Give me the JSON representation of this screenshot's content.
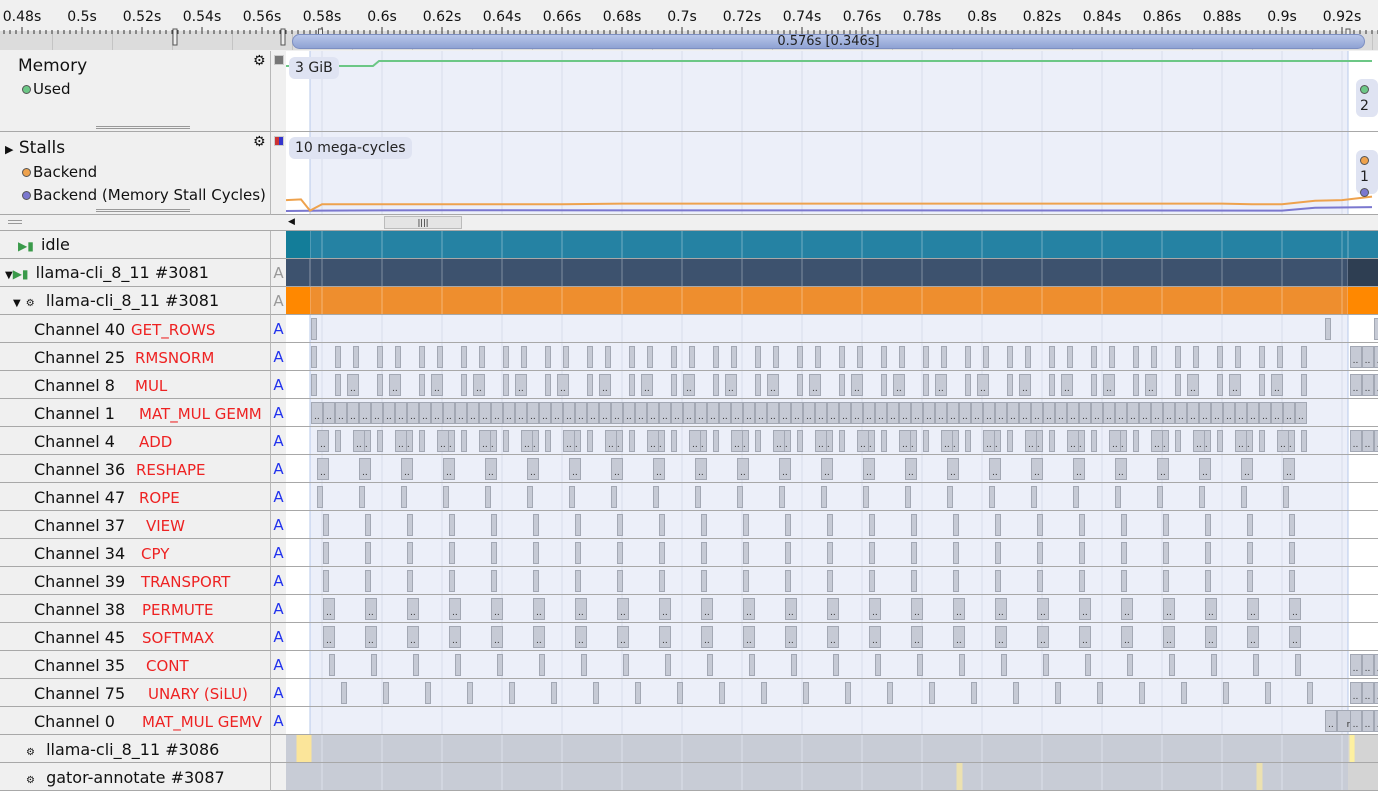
{
  "ruler": {
    "ticks": [
      "0.48s",
      "0.5s",
      "0.52s",
      "0.54s",
      "0.56s",
      "0.58s",
      "0.6s",
      "0.62s",
      "0.64s",
      "0.66s",
      "0.68s",
      "0.7s",
      "0.72s",
      "0.74s",
      "0.76s",
      "0.78s",
      "0.8s",
      "0.82s",
      "0.84s",
      "0.86s",
      "0.88s",
      "0.9s",
      "0.92s"
    ],
    "tick_values": [
      0.48,
      0.5,
      0.52,
      0.54,
      0.56,
      0.58,
      0.6,
      0.62,
      0.64,
      0.66,
      0.68,
      0.7,
      0.72,
      0.74,
      0.76,
      0.78,
      0.8,
      0.82,
      0.84,
      0.86,
      0.88,
      0.9,
      0.92
    ],
    "selection_label": "0.576s [0.346s]",
    "selection_start": 0.576,
    "selection_end": 0.922
  },
  "memory": {
    "title": "Memory",
    "series": "Used",
    "color": "#6cc786",
    "scale_label": "3 GiB",
    "right_badge": "2",
    "points": [
      [
        0.568,
        3.0
      ],
      [
        0.597,
        3.0
      ],
      [
        0.599,
        3.1
      ],
      [
        0.93,
        3.1
      ]
    ]
  },
  "stalls": {
    "title": "Stalls",
    "series": [
      {
        "name": "Backend",
        "color": "#eea24d"
      },
      {
        "name": "Backend (Memory Stall Cycles)",
        "color": "#7b78cf"
      }
    ],
    "scale_label": "10 mega-cycles",
    "right_badge": "1",
    "backend": [
      [
        0.568,
        1.7
      ],
      [
        0.573,
        1.8
      ],
      [
        0.576,
        0.2
      ],
      [
        0.58,
        1.1
      ],
      [
        0.66,
        1.1
      ],
      [
        0.68,
        1.2
      ],
      [
        0.88,
        1.2
      ],
      [
        0.89,
        1.1
      ],
      [
        0.9,
        1.1
      ],
      [
        0.911,
        1.6
      ],
      [
        0.92,
        1.7
      ],
      [
        0.93,
        2.2
      ]
    ],
    "memory_stall": [
      [
        0.568,
        0.15
      ],
      [
        0.58,
        0.2
      ],
      [
        0.62,
        0.25
      ],
      [
        0.9,
        0.2
      ],
      [
        0.911,
        0.6
      ],
      [
        0.93,
        0.7
      ]
    ]
  },
  "threads": [
    {
      "label": "idle",
      "badge": "",
      "color": "#2582a3"
    },
    {
      "label": "llama-cli_8_11 #3081",
      "badge": "A",
      "color": "#3d526e"
    },
    {
      "label": "llama-cli_8_11 #3081",
      "badge": "A",
      "color": "#ee8e2e"
    }
  ],
  "channels": [
    {
      "name": "Channel 40",
      "op": "GET_ROWS",
      "pattern": [],
      "extra": [
        [
          0.5763,
          0.002
        ],
        [
          0.9143,
          0.002
        ],
        [
          0.9307,
          0.002
        ]
      ]
    },
    {
      "name": "Channel 25",
      "op": "RMSNORM",
      "pattern": [
        [
          0.0,
          0.002
        ],
        [
          0.008,
          0.002
        ]
      ]
    },
    {
      "name": "Channel 8",
      "op": "MUL",
      "pattern": [
        [
          0.0,
          0.002
        ],
        [
          0.008,
          0.002
        ],
        [
          0.012,
          0.004
        ]
      ]
    },
    {
      "name": "Channel 1",
      "op": "MAT_MUL GEMM",
      "gemm": true
    },
    {
      "name": "Channel 4",
      "op": "ADD",
      "pattern": [
        [
          0.002,
          0.004
        ],
        [
          0.008,
          0.002
        ],
        [
          0.014,
          0.004
        ]
      ]
    },
    {
      "name": "Channel 36",
      "op": "RESHAPE",
      "pattern": [
        [
          0.002,
          0.004
        ]
      ]
    },
    {
      "name": "Channel 47",
      "op": "ROPE",
      "pattern": [
        [
          0.002,
          0.002
        ]
      ]
    },
    {
      "name": "Channel 37",
      "op": "VIEW",
      "pattern": [
        [
          0.004,
          0.002
        ]
      ]
    },
    {
      "name": "Channel 34",
      "op": "CPY",
      "pattern": [
        [
          0.004,
          0.002
        ]
      ]
    },
    {
      "name": "Channel 39",
      "op": "TRANSPORT",
      "pattern": [
        [
          0.004,
          0.002
        ]
      ]
    },
    {
      "name": "Channel 38",
      "op": "PERMUTE",
      "pattern": [
        [
          0.004,
          0.004
        ]
      ]
    },
    {
      "name": "Channel 45",
      "op": "SOFTMAX",
      "pattern": [
        [
          0.004,
          0.004
        ]
      ]
    },
    {
      "name": "Channel 35",
      "op": "CONT",
      "pattern": [
        [
          0.006,
          0.002
        ]
      ]
    },
    {
      "name": "Channel 75",
      "op": "UNARY (SiLU)",
      "pattern": [
        [
          0.01,
          0.002
        ]
      ]
    },
    {
      "name": "Channel 0",
      "op": "MAT_MUL GEMV",
      "pattern": [],
      "extra": [
        [
          0.9143,
          0.004
        ]
      ],
      "gemv_label": "re..."
    }
  ],
  "pattern_period": 0.014,
  "bottom_threads": [
    {
      "label": "llama-cli_8_11 #3086"
    },
    {
      "label": "gator-annotate #3087"
    }
  ],
  "event_label": ".."
}
